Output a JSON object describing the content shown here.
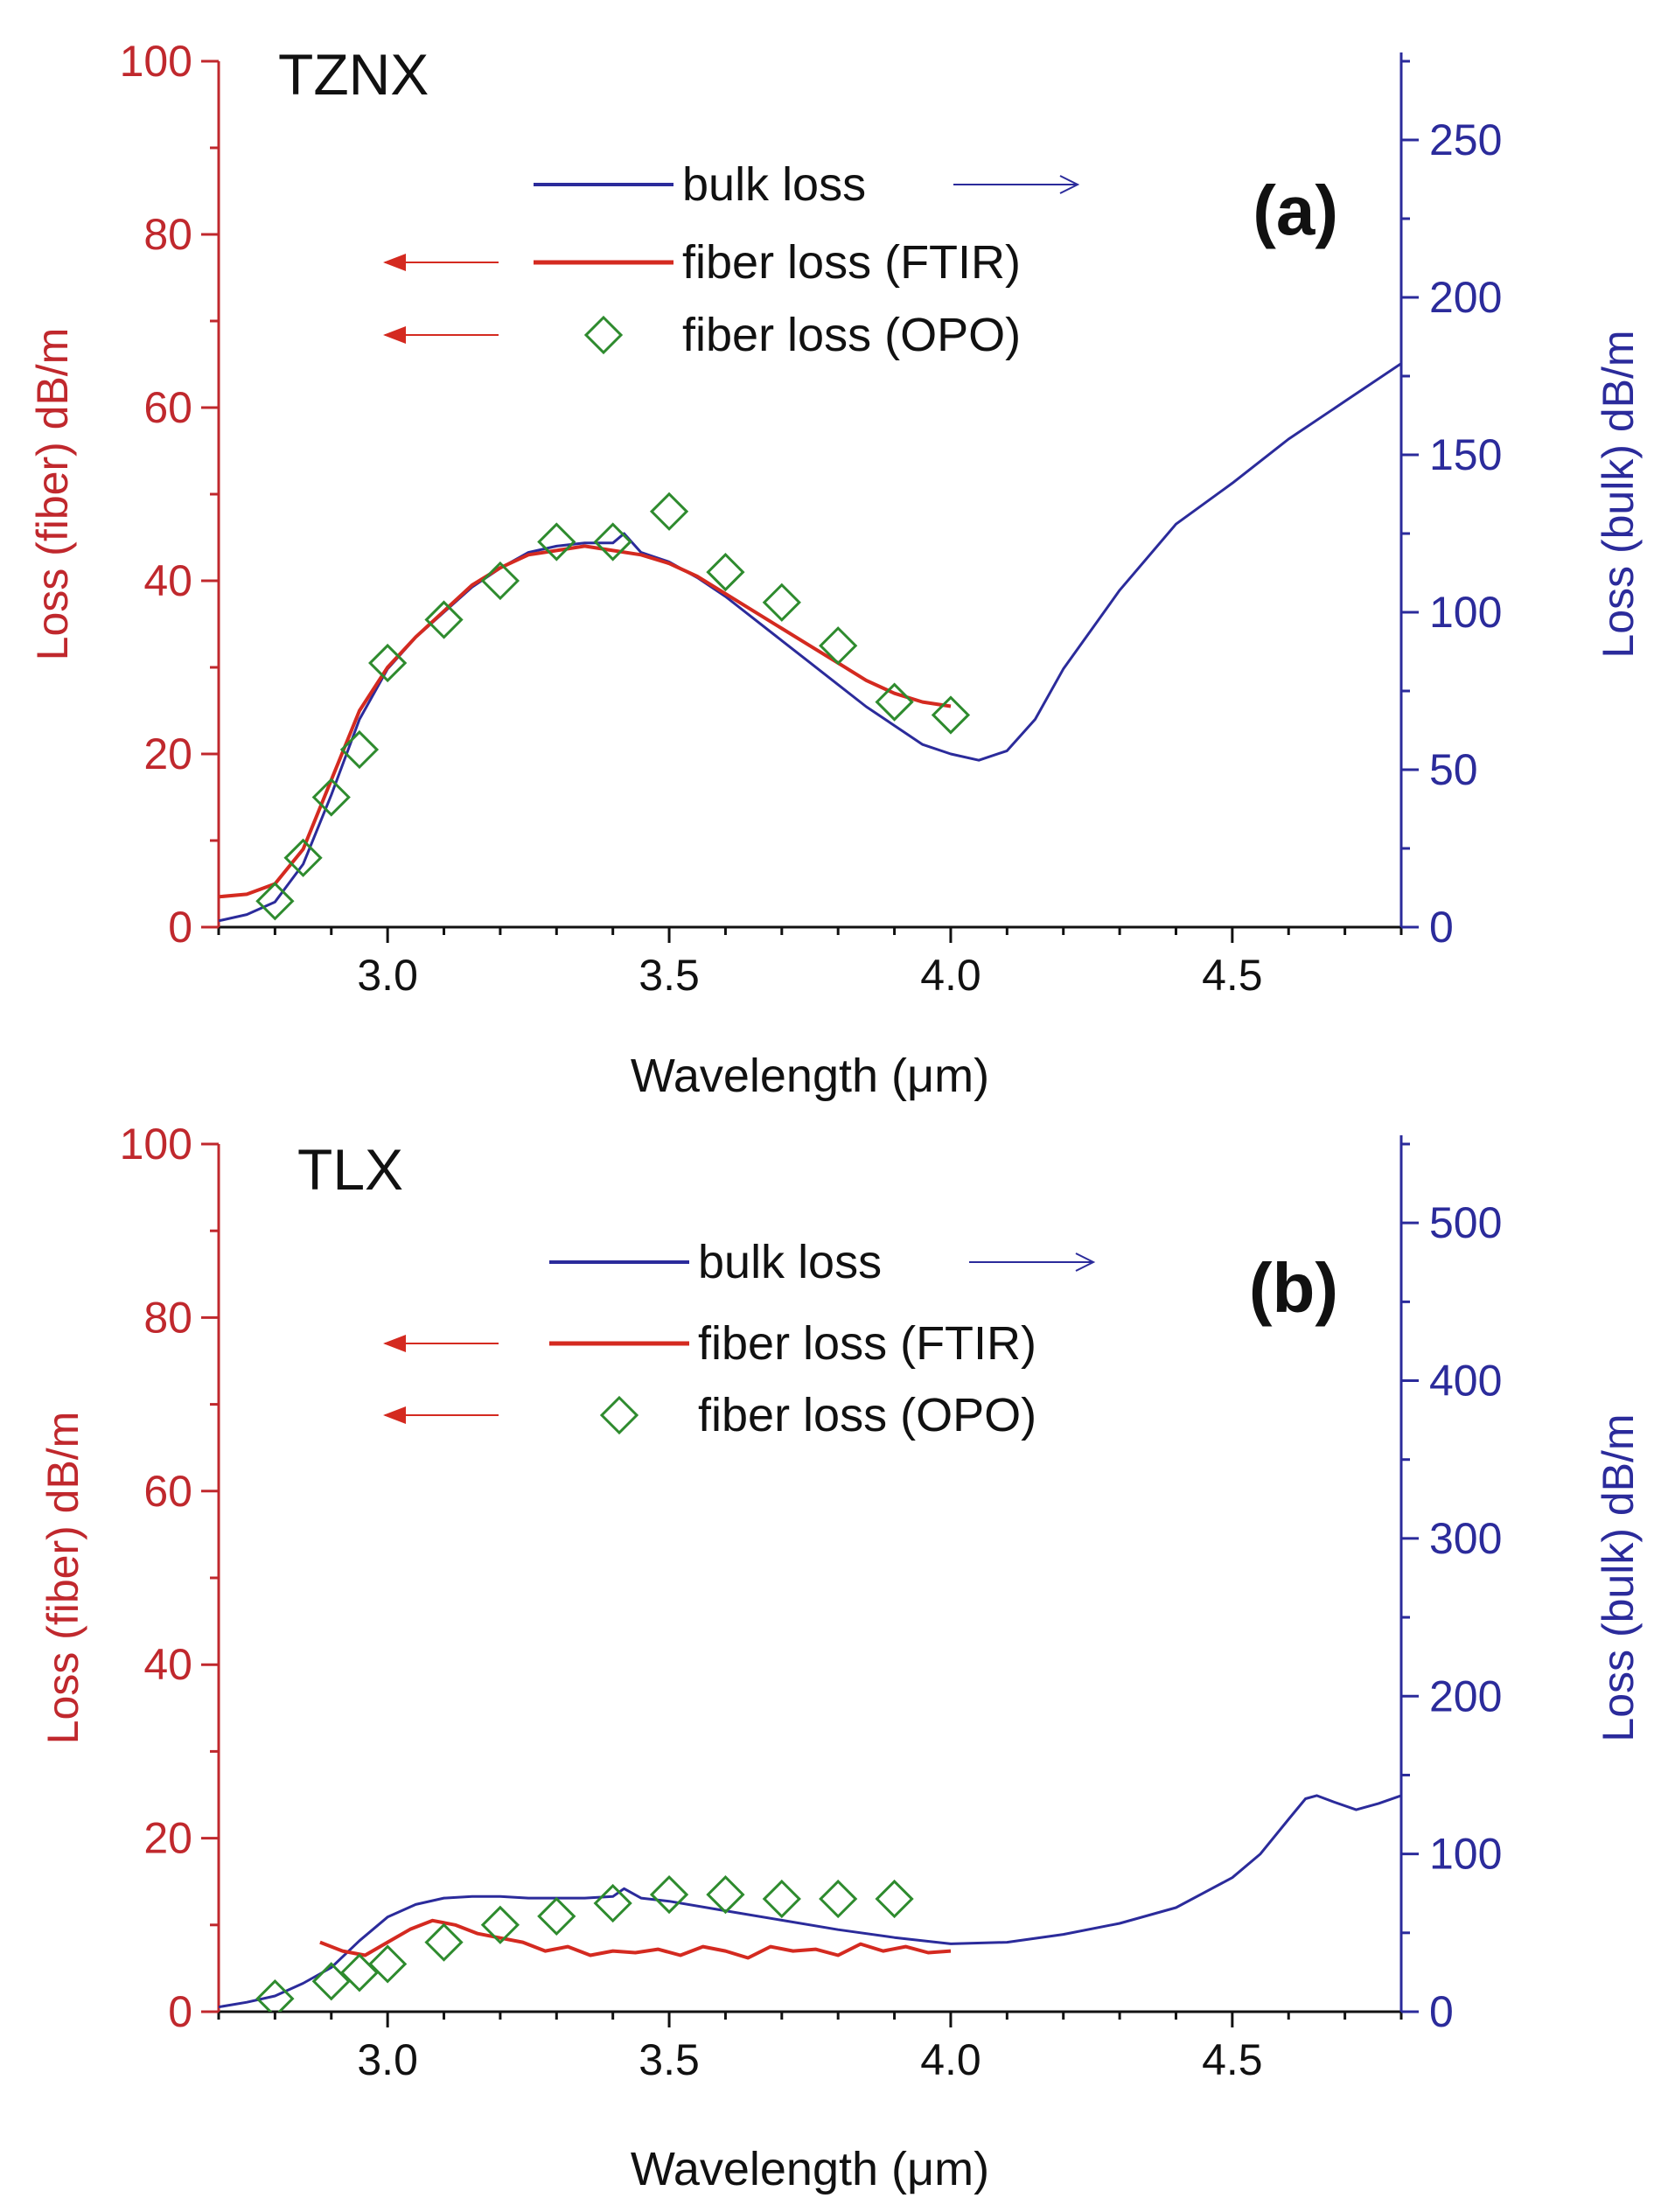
{
  "colors": {
    "fiber_axis": "#c0282d",
    "bulk_axis": "#2b2b9b",
    "bulk_line": "#2b2b9b",
    "fiber_line": "#d42a20",
    "opo_marker": "#2e8b2e",
    "text": "#111111"
  },
  "chart_data": [
    {
      "panel": "a",
      "type": "line",
      "title": "TZNX",
      "panel_label": "(a)",
      "xlabel": "Wavelength (μm)",
      "ylabel_left": "Loss (fiber) dB/m",
      "ylabel_right": "Loss (bulk) dB/m",
      "xlim": [
        2.7,
        4.8
      ],
      "ylim_left": [
        0,
        100
      ],
      "ylim_right": [
        0,
        275
      ],
      "xticks": [
        3.0,
        3.5,
        4.0,
        4.5
      ],
      "xtick_labels": [
        "3.0",
        "3.5",
        "4.0",
        "4.5"
      ],
      "yticks_left": [
        0,
        20,
        40,
        60,
        80,
        100
      ],
      "ytick_labels_left": [
        "0",
        "20",
        "40",
        "60",
        "80",
        "100"
      ],
      "yticks_right": [
        0,
        50,
        100,
        150,
        200,
        250
      ],
      "ytick_labels_right": [
        "0",
        "50",
        "100",
        "150",
        "200",
        "250"
      ],
      "legend": [
        {
          "label": "bulk loss",
          "axis": "right"
        },
        {
          "label": "fiber loss (FTIR)",
          "axis": "left"
        },
        {
          "label": "fiber loss (OPO)",
          "axis": "left"
        }
      ],
      "series": [
        {
          "name": "bulk loss",
          "axis": "right",
          "style": "line",
          "x": [
            2.7,
            2.75,
            2.8,
            2.85,
            2.9,
            2.95,
            3.0,
            3.05,
            3.1,
            3.15,
            3.2,
            3.25,
            3.3,
            3.35,
            3.4,
            3.42,
            3.45,
            3.5,
            3.55,
            3.6,
            3.65,
            3.7,
            3.75,
            3.8,
            3.85,
            3.9,
            3.95,
            4.0,
            4.05,
            4.1,
            4.15,
            4.2,
            4.3,
            4.4,
            4.5,
            4.6,
            4.7,
            4.8
          ],
          "y": [
            2,
            4,
            8,
            20,
            42,
            66,
            82,
            92,
            100,
            108,
            114,
            119,
            121,
            122,
            122,
            125,
            119,
            116,
            111,
            105,
            98,
            91,
            84,
            77,
            70,
            64,
            58,
            55,
            53,
            56,
            66,
            82,
            107,
            128,
            141,
            155,
            167,
            179
          ]
        },
        {
          "name": "fiber loss (FTIR)",
          "axis": "left",
          "style": "line",
          "x": [
            2.7,
            2.75,
            2.8,
            2.85,
            2.9,
            2.95,
            3.0,
            3.05,
            3.1,
            3.15,
            3.2,
            3.25,
            3.3,
            3.35,
            3.4,
            3.45,
            3.5,
            3.55,
            3.6,
            3.65,
            3.7,
            3.75,
            3.8,
            3.85,
            3.9,
            3.95,
            4.0
          ],
          "y": [
            3.5,
            3.8,
            5,
            9,
            17,
            25,
            30,
            33.5,
            36.5,
            39.5,
            41.5,
            43,
            43.5,
            44,
            43.5,
            43,
            42,
            40.5,
            38.5,
            36.5,
            34.5,
            32.5,
            30.5,
            28.5,
            27,
            26,
            25.5
          ]
        },
        {
          "name": "fiber loss (OPO)",
          "axis": "left",
          "style": "marker",
          "x": [
            2.8,
            2.85,
            2.9,
            2.95,
            3.0,
            3.1,
            3.2,
            3.3,
            3.4,
            3.5,
            3.6,
            3.7,
            3.8,
            3.9,
            4.0
          ],
          "y": [
            3,
            8,
            15,
            20.5,
            30.5,
            35.5,
            40,
            44.5,
            44.5,
            48,
            41,
            37.5,
            32.5,
            26,
            24.5
          ]
        }
      ]
    },
    {
      "panel": "b",
      "type": "line",
      "title": "TLX",
      "panel_label": "(b)",
      "xlabel": "Wavelength (μm)",
      "ylabel_left": "Loss (fiber) dB/m",
      "ylabel_right": "Loss (bulk) dB/m",
      "xlim": [
        2.7,
        4.8
      ],
      "ylim_left": [
        0,
        100
      ],
      "ylim_right": [
        0,
        550
      ],
      "xticks": [
        3.0,
        3.5,
        4.0,
        4.5
      ],
      "xtick_labels": [
        "3.0",
        "3.5",
        "4.0",
        "4.5"
      ],
      "yticks_left": [
        0,
        20,
        40,
        60,
        80,
        100
      ],
      "ytick_labels_left": [
        "0",
        "20",
        "40",
        "60",
        "80",
        "100"
      ],
      "yticks_right": [
        0,
        100,
        200,
        300,
        400,
        500
      ],
      "ytick_labels_right": [
        "0",
        "100",
        "200",
        "300",
        "400",
        "500"
      ],
      "legend": [
        {
          "label": "bulk loss",
          "axis": "right"
        },
        {
          "label": "fiber loss (FTIR)",
          "axis": "left"
        },
        {
          "label": "fiber loss (OPO)",
          "axis": "left"
        }
      ],
      "series": [
        {
          "name": "bulk loss",
          "axis": "right",
          "style": "line",
          "x": [
            2.7,
            2.75,
            2.8,
            2.85,
            2.9,
            2.95,
            3.0,
            3.05,
            3.1,
            3.15,
            3.2,
            3.25,
            3.3,
            3.35,
            3.4,
            3.42,
            3.45,
            3.5,
            3.6,
            3.7,
            3.8,
            3.9,
            4.0,
            4.1,
            4.2,
            4.3,
            4.4,
            4.5,
            4.55,
            4.6,
            4.63,
            4.65,
            4.68,
            4.72,
            4.76,
            4.8
          ],
          "y": [
            3,
            6,
            10,
            18,
            28,
            45,
            60,
            68,
            72,
            73,
            73,
            72,
            72,
            72,
            73,
            78,
            72,
            70,
            64,
            58,
            52,
            47,
            43,
            44,
            49,
            56,
            66,
            85,
            100,
            122,
            135,
            137,
            133,
            128,
            132,
            137
          ]
        },
        {
          "name": "fiber loss (FTIR)",
          "axis": "left",
          "style": "line",
          "x": [
            2.88,
            2.92,
            2.96,
            3.0,
            3.04,
            3.08,
            3.12,
            3.16,
            3.2,
            3.24,
            3.28,
            3.32,
            3.36,
            3.4,
            3.44,
            3.48,
            3.52,
            3.56,
            3.6,
            3.64,
            3.68,
            3.72,
            3.76,
            3.8,
            3.84,
            3.88,
            3.92,
            3.96,
            4.0
          ],
          "y": [
            8,
            7,
            6.5,
            8,
            9.5,
            10.5,
            10,
            9,
            8.5,
            8,
            7,
            7.5,
            6.5,
            7,
            6.8,
            7.2,
            6.5,
            7.5,
            7,
            6.2,
            7.5,
            7,
            7.2,
            6.5,
            7.8,
            7,
            7.5,
            6.8,
            7
          ]
        },
        {
          "name": "fiber loss (OPO)",
          "axis": "left",
          "style": "marker",
          "x": [
            2.8,
            2.9,
            2.95,
            3.0,
            3.1,
            3.2,
            3.3,
            3.4,
            3.5,
            3.6,
            3.7,
            3.8,
            3.9
          ],
          "y": [
            1.5,
            3.5,
            4.5,
            5.5,
            8,
            10,
            11,
            12.5,
            13.5,
            13.5,
            13,
            13,
            13
          ]
        }
      ]
    }
  ]
}
